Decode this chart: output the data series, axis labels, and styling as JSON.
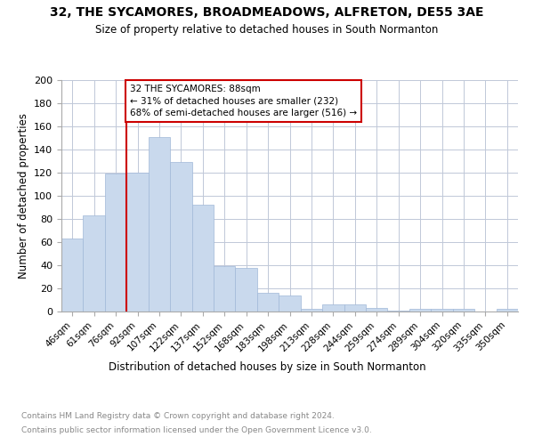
{
  "title1": "32, THE SYCAMORES, BROADMEADOWS, ALFRETON, DE55 3AE",
  "title2": "Size of property relative to detached houses in South Normanton",
  "xlabel": "Distribution of detached houses by size in South Normanton",
  "ylabel": "Number of detached properties",
  "footer1": "Contains HM Land Registry data © Crown copyright and database right 2024.",
  "footer2": "Contains public sector information licensed under the Open Government Licence v3.0.",
  "annotation_line1": "32 THE SYCAMORES: 88sqm",
  "annotation_line2": "← 31% of detached houses are smaller (232)",
  "annotation_line3": "68% of semi-detached houses are larger (516) →",
  "bar_color": "#c9d9ed",
  "bar_edge_color": "#a0b8d8",
  "vline_color": "#cc0000",
  "annotation_box_color": "#cc0000",
  "categories": [
    "46sqm",
    "61sqm",
    "76sqm",
    "92sqm",
    "107sqm",
    "122sqm",
    "137sqm",
    "152sqm",
    "168sqm",
    "183sqm",
    "198sqm",
    "213sqm",
    "228sqm",
    "244sqm",
    "259sqm",
    "274sqm",
    "289sqm",
    "304sqm",
    "320sqm",
    "335sqm",
    "350sqm"
  ],
  "values": [
    63,
    83,
    119,
    120,
    151,
    129,
    92,
    39,
    38,
    16,
    14,
    2,
    6,
    6,
    3,
    1,
    2,
    2,
    2,
    0,
    2
  ],
  "ylim": [
    0,
    200
  ],
  "yticks": [
    0,
    20,
    40,
    60,
    80,
    100,
    120,
    140,
    160,
    180,
    200
  ],
  "vline_x": 3.0,
  "bg_color": "#ffffff",
  "grid_color": "#c0c8d8"
}
